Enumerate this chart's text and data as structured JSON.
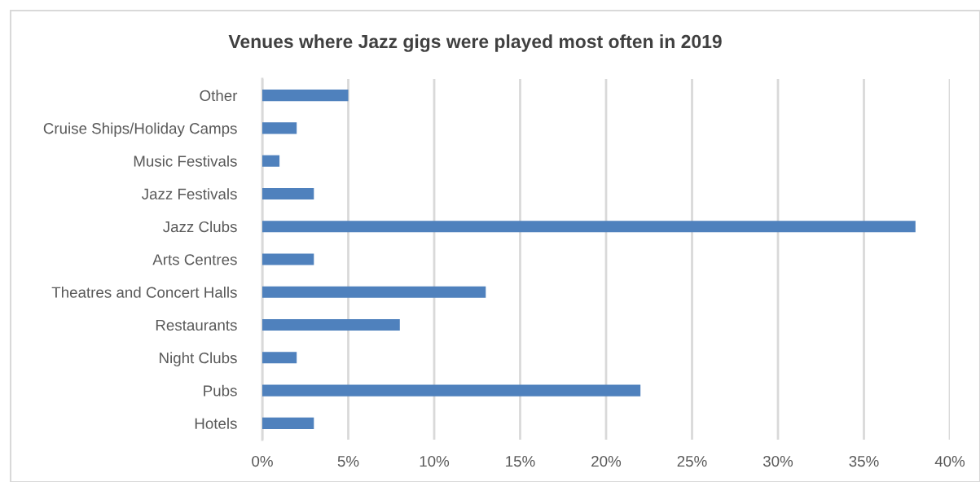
{
  "chart_data": {
    "type": "bar",
    "orientation": "horizontal",
    "title": "Venues where Jazz gigs were played most often in 2019",
    "categories": [
      "Other",
      "Cruise Ships/Holiday Camps",
      "Music Festivals",
      "Jazz Festivals",
      "Jazz Clubs",
      "Arts Centres",
      "Theatres and Concert Halls",
      "Restaurants",
      "Night Clubs",
      "Pubs",
      "Hotels"
    ],
    "values": [
      5,
      2,
      1,
      3,
      38,
      3,
      13,
      8,
      2,
      22,
      3
    ],
    "color": "#4f81bd",
    "xlim": [
      0,
      40
    ],
    "xticks": [
      {
        "value": 0,
        "label": "0%"
      },
      {
        "value": 5,
        "label": "5%"
      },
      {
        "value": 10,
        "label": "10%"
      },
      {
        "value": 15,
        "label": "15%"
      },
      {
        "value": 20,
        "label": "20%"
      },
      {
        "value": 25,
        "label": "25%"
      },
      {
        "value": 30,
        "label": "30%"
      },
      {
        "value": 35,
        "label": "35%"
      },
      {
        "value": 40,
        "label": "40%"
      }
    ],
    "grid": "x"
  }
}
